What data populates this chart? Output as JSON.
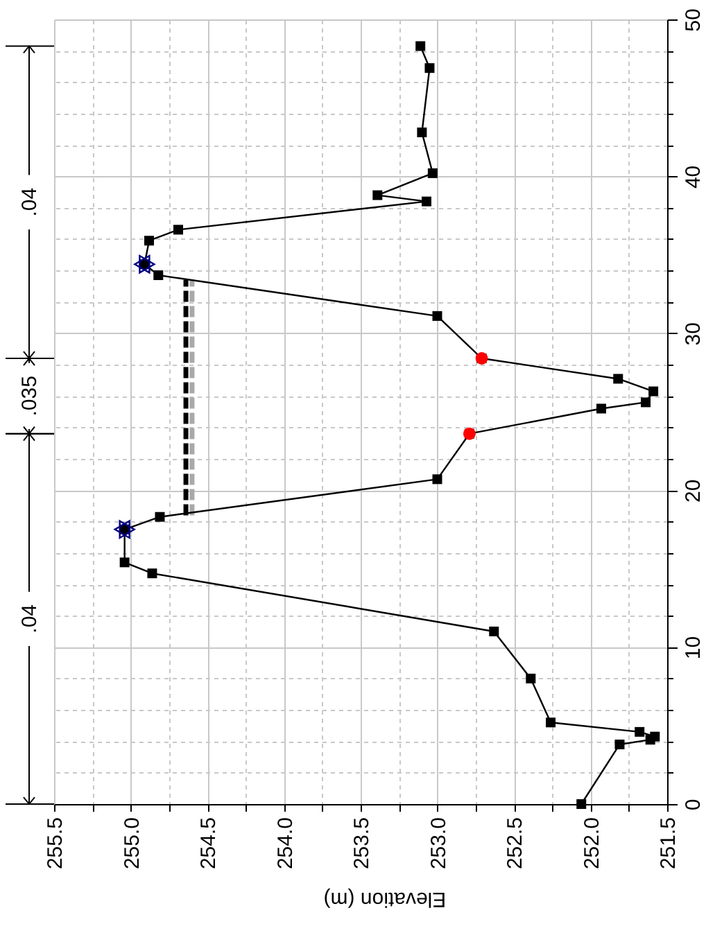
{
  "chart_data": {
    "type": "line",
    "xlabel": "Elevation (m)",
    "xlim": [
      255.5,
      251.5
    ],
    "xticks": [
      255.5,
      {
        "value": 255.25,
        "label": null
      },
      {
        "value": 255,
        "label": "255.0"
      },
      {
        "value": 254.75,
        "label": null
      },
      254.5,
      {
        "value": 254.25,
        "label": null
      },
      {
        "value": 254,
        "label": "254.0"
      },
      {
        "value": 253.75,
        "label": null
      },
      253.5,
      {
        "value": 253.25,
        "label": null
      },
      {
        "value": 253,
        "label": "253.0"
      },
      {
        "value": 252.75,
        "label": null
      },
      252.5,
      {
        "value": 252.25,
        "label": null
      },
      {
        "value": 252,
        "label": "252.0"
      },
      {
        "value": 251.75,
        "label": null
      },
      251.5
    ],
    "ylim": [
      0,
      50
    ],
    "yticks": [
      0,
      {
        "value": 2,
        "label": null
      },
      {
        "value": 4,
        "label": null
      },
      {
        "value": 6,
        "label": null
      },
      {
        "value": 8,
        "label": null
      },
      10,
      {
        "value": 12,
        "label": null
      },
      {
        "value": 14,
        "label": null
      },
      {
        "value": 16,
        "label": null
      },
      {
        "value": 18,
        "label": null
      },
      20,
      {
        "value": 22,
        "label": null
      },
      {
        "value": 24,
        "label": null
      },
      {
        "value": 26,
        "label": null
      },
      {
        "value": 28,
        "label": null
      },
      30,
      {
        "value": 32,
        "label": null
      },
      {
        "value": 34,
        "label": null
      },
      {
        "value": 36,
        "label": null
      },
      {
        "value": 38,
        "label": null
      },
      40,
      {
        "value": 42,
        "label": null
      },
      {
        "value": 44,
        "label": null
      },
      {
        "value": 46,
        "label": null
      },
      {
        "value": 48,
        "label": null
      },
      50
    ],
    "grid": true,
    "series": [
      {
        "color": "#a9a9a9",
        "line_style": "dashed",
        "marker": "none",
        "x": [
          254.6,
          254.6
        ],
        "values": [
          18.4,
          33.4
        ]
      },
      {
        "color": "#000000",
        "line_style": "dashed",
        "marker": "none",
        "x": [
          254.64,
          254.64
        ],
        "values": [
          18.4,
          33.4
        ]
      },
      {
        "color": "#000000",
        "line_style": "solid",
        "marker": "square",
        "x": [
          252.06,
          251.81,
          251.61,
          251.58,
          251.68,
          252.26,
          252.39,
          252.63,
          254.86,
          255.04,
          255.04,
          254.81,
          253.0,
          252.79,
          251.93,
          251.64,
          251.59,
          251.82,
          252.71,
          253.0,
          254.82,
          254.91,
          254.88,
          254.69,
          253.07,
          253.39,
          253.03,
          253.1,
          253.05,
          253.11
        ],
        "values": [
          0,
          3.8,
          4.1,
          4.3,
          4.6,
          5.2,
          8.0,
          11.0,
          14.7,
          15.4,
          17.5,
          18.3,
          20.7,
          23.6,
          25.2,
          25.6,
          26.3,
          27.1,
          28.4,
          31.1,
          33.7,
          34.4,
          35.9,
          36.6,
          38.4,
          38.8,
          40.2,
          42.8,
          46.9,
          48.3
        ]
      },
      {
        "type": "scatter",
        "color": "#ff0000",
        "marker": "circle",
        "x": [
          252.79,
          252.71
        ],
        "values": [
          23.6,
          28.4
        ]
      },
      {
        "type": "scatter",
        "color": "#000080",
        "marker": "star",
        "x": [
          255.04,
          254.91
        ],
        "values": [
          17.5,
          34.4
        ]
      }
    ],
    "annotations": [
      ".04",
      ".035",
      ".04"
    ]
  }
}
